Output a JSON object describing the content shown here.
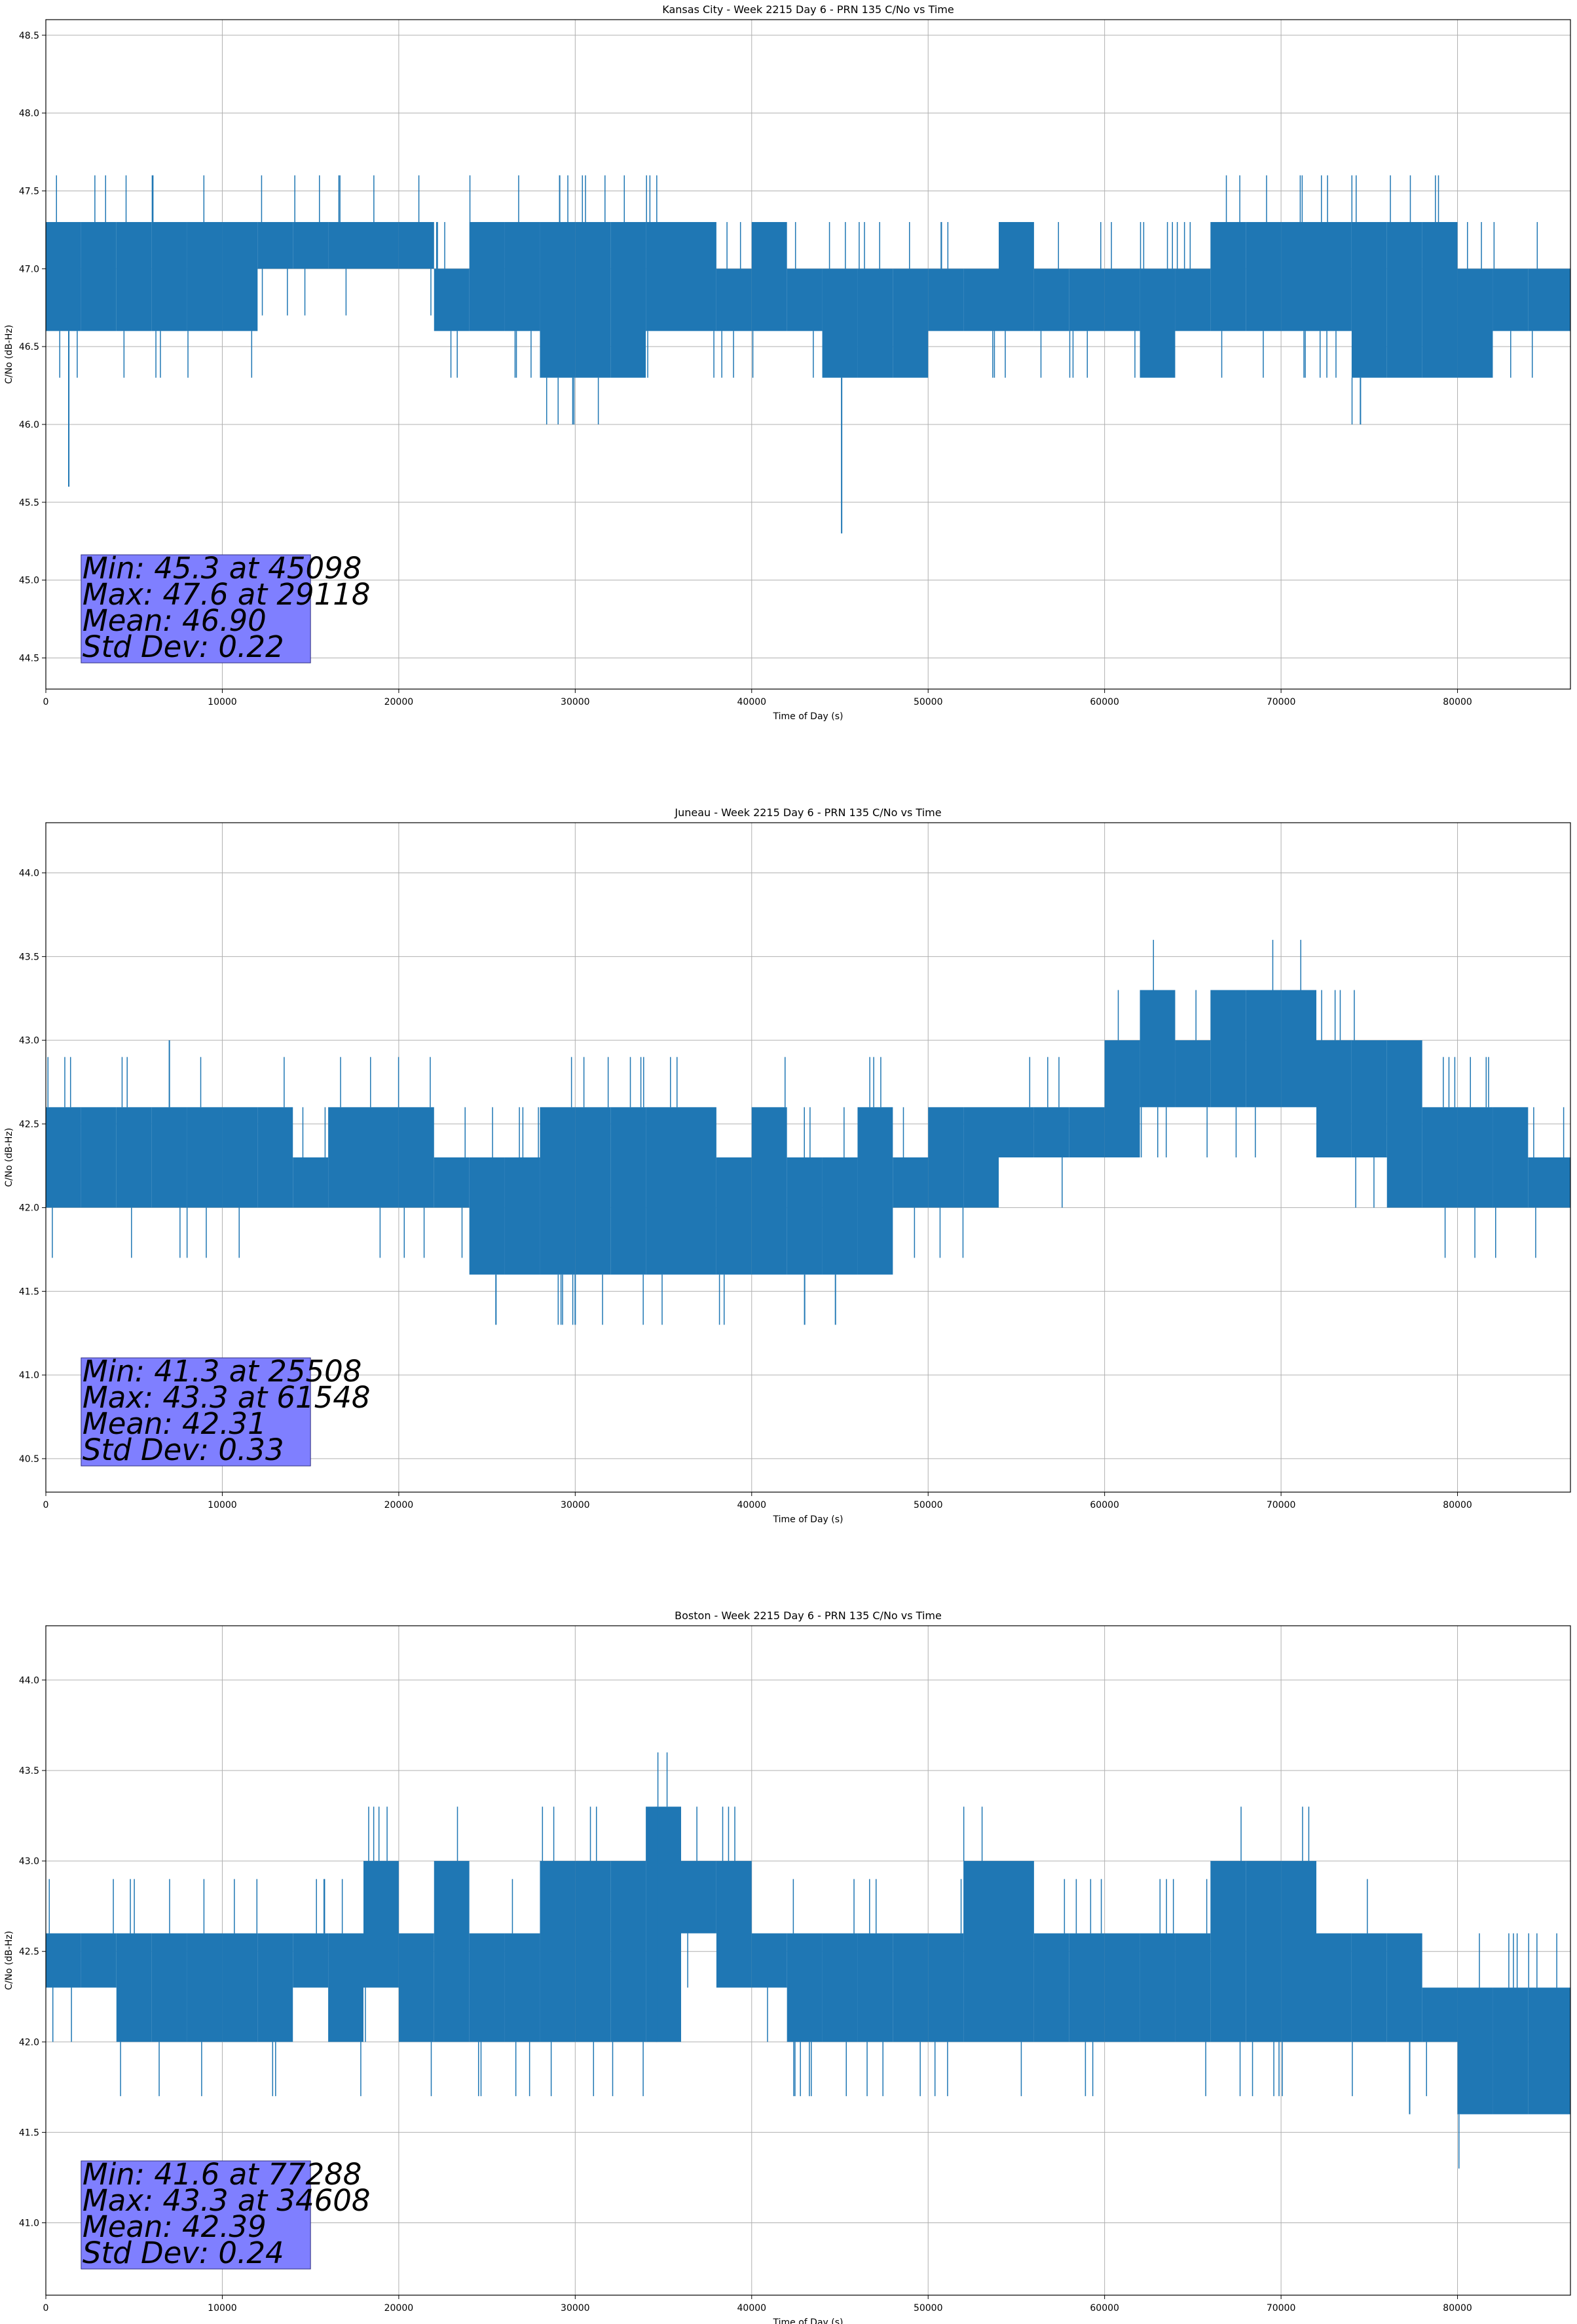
{
  "chart_data": [
    {
      "type": "line",
      "title": "Kansas City - Week 2215 Day 6 - PRN 135 C/No vs Time",
      "xlabel": "Time of Day (s)",
      "ylabel": "C/No (dB-Hz)",
      "xlim": [
        0,
        86400
      ],
      "ylim": [
        44.3,
        48.6
      ],
      "xticks": [
        0,
        10000,
        20000,
        30000,
        40000,
        50000,
        60000,
        70000,
        80000
      ],
      "yticks": [
        44.5,
        45.0,
        45.5,
        46.0,
        46.5,
        47.0,
        47.5,
        48.0,
        48.5
      ],
      "grid": true,
      "legend": "none",
      "series": [
        {
          "color": "#1f77b4",
          "x": [
            0,
            2000,
            4000,
            6000,
            8000,
            10000,
            12000,
            14000,
            16000,
            18000,
            20000,
            22000,
            24000,
            26000,
            28000,
            30000,
            32000,
            34000,
            36000,
            38000,
            40000,
            42000,
            44000,
            46000,
            48000,
            50000,
            52000,
            54000,
            56000,
            58000,
            60000,
            62000,
            64000,
            66000,
            68000,
            70000,
            72000,
            74000,
            76000,
            78000,
            80000,
            82000,
            84000,
            86400
          ],
          "low": [
            46.6,
            46.6,
            46.6,
            46.6,
            46.6,
            46.6,
            47.0,
            47.0,
            47.0,
            47.0,
            47.0,
            46.6,
            46.6,
            46.6,
            46.3,
            46.3,
            46.3,
            46.6,
            46.6,
            46.6,
            46.6,
            46.6,
            46.3,
            46.3,
            46.3,
            46.6,
            46.6,
            46.6,
            46.6,
            46.6,
            46.6,
            46.3,
            46.6,
            46.6,
            46.6,
            46.6,
            46.6,
            46.3,
            46.3,
            46.3,
            46.3,
            46.6,
            46.6,
            46.6
          ],
          "high": [
            47.3,
            47.3,
            47.3,
            47.3,
            47.3,
            47.3,
            47.3,
            47.3,
            47.3,
            47.3,
            47.3,
            47.0,
            47.3,
            47.3,
            47.3,
            47.3,
            47.3,
            47.3,
            47.3,
            47.0,
            47.3,
            47.0,
            47.0,
            47.0,
            47.0,
            47.0,
            47.0,
            47.3,
            47.0,
            47.0,
            47.0,
            47.0,
            47.0,
            47.3,
            47.3,
            47.3,
            47.3,
            47.3,
            47.3,
            47.3,
            47.0,
            47.0,
            47.0,
            47.3
          ],
          "spikes": [
            [
              1300,
              45.6
            ],
            [
              29118,
              47.6
            ],
            [
              45098,
              45.3
            ],
            [
              74500,
              46.0
            ]
          ]
        }
      ],
      "stats": [
        "Min: 45.3 at 45098",
        "Max: 47.6 at 29118",
        "Mean: 46.90",
        "Std Dev: 0.22"
      ]
    },
    {
      "type": "line",
      "title": "Juneau - Week 2215 Day 6 - PRN 135 C/No vs Time",
      "xlabel": "Time of Day (s)",
      "ylabel": "C/No (dB-Hz)",
      "xlim": [
        0,
        86400
      ],
      "ylim": [
        40.3,
        44.3
      ],
      "xticks": [
        0,
        10000,
        20000,
        30000,
        40000,
        50000,
        60000,
        70000,
        80000
      ],
      "yticks": [
        40.5,
        41.0,
        41.5,
        42.0,
        42.5,
        43.0,
        43.5,
        44.0
      ],
      "grid": true,
      "legend": "none",
      "series": [
        {
          "color": "#1f77b4",
          "x": [
            0,
            2000,
            4000,
            6000,
            8000,
            10000,
            12000,
            14000,
            16000,
            18000,
            20000,
            22000,
            24000,
            26000,
            28000,
            30000,
            32000,
            34000,
            36000,
            38000,
            40000,
            42000,
            44000,
            46000,
            48000,
            50000,
            52000,
            54000,
            56000,
            58000,
            60000,
            62000,
            64000,
            66000,
            68000,
            70000,
            72000,
            74000,
            76000,
            78000,
            80000,
            82000,
            84000,
            86400
          ],
          "low": [
            42.0,
            42.0,
            42.0,
            42.0,
            42.0,
            42.0,
            42.0,
            42.0,
            42.0,
            42.0,
            42.0,
            42.0,
            41.6,
            41.6,
            41.6,
            41.6,
            41.6,
            41.6,
            41.6,
            41.6,
            41.6,
            41.6,
            41.6,
            41.6,
            42.0,
            42.0,
            42.0,
            42.3,
            42.3,
            42.3,
            42.3,
            42.6,
            42.6,
            42.6,
            42.6,
            42.6,
            42.3,
            42.3,
            42.0,
            42.0,
            42.0,
            42.0,
            42.0,
            41.6
          ],
          "high": [
            42.6,
            42.6,
            42.6,
            42.6,
            42.6,
            42.6,
            42.6,
            42.3,
            42.6,
            42.6,
            42.6,
            42.3,
            42.3,
            42.3,
            42.6,
            42.6,
            42.6,
            42.6,
            42.6,
            42.3,
            42.6,
            42.3,
            42.3,
            42.6,
            42.3,
            42.6,
            42.6,
            42.6,
            42.6,
            42.6,
            43.0,
            43.3,
            43.0,
            43.3,
            43.3,
            43.3,
            43.0,
            43.0,
            43.0,
            42.6,
            42.6,
            42.6,
            42.3,
            42.3
          ],
          "spikes": [
            [
              7000,
              43.0
            ],
            [
              25508,
              41.3
            ],
            [
              30000,
              41.3
            ],
            [
              43000,
              41.3
            ]
          ]
        }
      ],
      "stats": [
        "Min: 41.3 at 25508",
        "Max: 43.3 at 61548",
        "Mean: 42.31",
        "Std Dev: 0.33"
      ]
    },
    {
      "type": "line",
      "title": "Boston - Week 2215 Day 6 - PRN 135 C/No vs Time",
      "xlabel": "Time of Day (s)",
      "ylabel": "C/No (dB-Hz)",
      "xlim": [
        0,
        86400
      ],
      "ylim": [
        40.6,
        44.3
      ],
      "xticks": [
        0,
        10000,
        20000,
        30000,
        40000,
        50000,
        60000,
        70000,
        80000
      ],
      "yticks": [
        41.0,
        41.5,
        42.0,
        42.5,
        43.0,
        43.5,
        44.0
      ],
      "grid": true,
      "legend": "none",
      "series": [
        {
          "color": "#1f77b4",
          "x": [
            0,
            2000,
            4000,
            6000,
            8000,
            10000,
            12000,
            14000,
            16000,
            18000,
            20000,
            22000,
            24000,
            26000,
            28000,
            30000,
            32000,
            34000,
            36000,
            38000,
            40000,
            42000,
            44000,
            46000,
            48000,
            50000,
            52000,
            54000,
            56000,
            58000,
            60000,
            62000,
            64000,
            66000,
            68000,
            70000,
            72000,
            74000,
            76000,
            78000,
            80000,
            82000,
            84000,
            86400
          ],
          "low": [
            42.3,
            42.3,
            42.0,
            42.0,
            42.0,
            42.0,
            42.0,
            42.3,
            42.0,
            42.3,
            42.0,
            42.0,
            42.0,
            42.0,
            42.0,
            42.0,
            42.0,
            42.0,
            42.6,
            42.3,
            42.3,
            42.0,
            42.0,
            42.0,
            42.0,
            42.0,
            42.0,
            42.0,
            42.0,
            42.0,
            42.0,
            42.0,
            42.0,
            42.0,
            42.0,
            42.0,
            42.0,
            42.0,
            42.0,
            42.0,
            41.6,
            41.6,
            41.6,
            42.0
          ],
          "high": [
            42.6,
            42.6,
            42.6,
            42.6,
            42.6,
            42.6,
            42.6,
            42.6,
            42.6,
            43.0,
            42.6,
            43.0,
            42.6,
            42.6,
            43.0,
            43.0,
            43.0,
            43.3,
            43.0,
            43.0,
            42.6,
            42.6,
            42.6,
            42.6,
            42.6,
            42.6,
            43.0,
            43.0,
            42.6,
            42.6,
            42.6,
            42.6,
            42.6,
            43.0,
            43.0,
            43.0,
            42.6,
            42.6,
            42.6,
            42.3,
            42.3,
            42.3,
            42.3,
            42.3
          ],
          "spikes": [
            [
              77288,
              41.6
            ],
            [
              34608,
              43.3
            ]
          ]
        }
      ],
      "stats": [
        "Min: 41.6 at 77288",
        "Max: 43.3 at 34608",
        "Mean: 42.39",
        "Std Dev: 0.24"
      ]
    }
  ]
}
